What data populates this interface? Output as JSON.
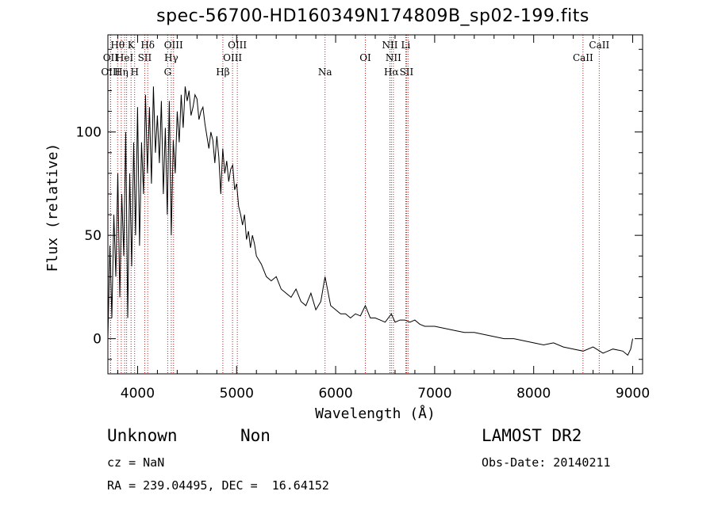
{
  "chart_data": {
    "type": "line",
    "title": "spec-56700-HD160349N174809B_sp02-199.fits",
    "xlabel": "Wavelength (Å)",
    "ylabel": "Flux (relative)",
    "xlim": [
      3700,
      9100
    ],
    "ylim": [
      -17,
      147
    ],
    "xticks": [
      "4000",
      "5000",
      "6000",
      "7000",
      "8000",
      "9000"
    ],
    "yticks": [
      "0",
      "50",
      "100"
    ],
    "lines": [
      {
        "wave": 3727,
        "label": "OII",
        "row": 2
      },
      {
        "wave": 3727,
        "label": "OIII",
        "row": 3
      },
      {
        "wave": 3798,
        "label": "Hθ",
        "row": 1
      },
      {
        "wave": 3835,
        "label": "Hη",
        "row": 3
      },
      {
        "wave": 3869,
        "label": "HeI",
        "row": 2
      },
      {
        "wave": 3889,
        "label": "",
        "row": 0
      },
      {
        "wave": 3934,
        "label": "K",
        "row": 1
      },
      {
        "wave": 3970,
        "label": "H",
        "row": 3
      },
      {
        "wave": 4072,
        "label": "SII",
        "row": 2
      },
      {
        "wave": 4102,
        "label": "Hδ",
        "row": 1
      },
      {
        "wave": 4304,
        "label": "G",
        "row": 3
      },
      {
        "wave": 4340,
        "label": "Hγ",
        "row": 2
      },
      {
        "wave": 4363,
        "label": "OIII",
        "row": 1
      },
      {
        "wave": 4861,
        "label": "Hβ",
        "row": 3
      },
      {
        "wave": 4959,
        "label": "OIII",
        "row": 2
      },
      {
        "wave": 5007,
        "label": "OIII",
        "row": 1
      },
      {
        "wave": 5893,
        "label": "Na",
        "row": 3
      },
      {
        "wave": 6300,
        "label": "OI",
        "row": 2
      },
      {
        "wave": 6548,
        "label": "NII",
        "row": 1
      },
      {
        "wave": 6563,
        "label": "Hα",
        "row": 3
      },
      {
        "wave": 6583,
        "label": "NII",
        "row": 2
      },
      {
        "wave": 6708,
        "label": "Li",
        "row": 1
      },
      {
        "wave": 6716,
        "label": "SII",
        "row": 3
      },
      {
        "wave": 6731,
        "label": "",
        "row": 0
      },
      {
        "wave": 8498,
        "label": "CaII",
        "row": 2
      },
      {
        "wave": 8662,
        "label": "CaII",
        "row": 1
      }
    ],
    "series": [
      {
        "x": [
          3700,
          3720,
          3740,
          3760,
          3780,
          3800,
          3820,
          3840,
          3860,
          3880,
          3900,
          3920,
          3940,
          3960,
          3980,
          4000,
          4020,
          4040,
          4060,
          4080,
          4100,
          4120,
          4140,
          4160,
          4180,
          4200,
          4220,
          4240,
          4260,
          4280,
          4300,
          4320,
          4340,
          4360,
          4380,
          4400,
          4420,
          4440,
          4460,
          4480,
          4500,
          4520,
          4540,
          4560,
          4580,
          4600,
          4620,
          4640,
          4660,
          4680,
          4700,
          4720,
          4740,
          4760,
          4780,
          4800,
          4820,
          4840,
          4860,
          4880,
          4900,
          4920,
          4940,
          4960,
          4980,
          5000,
          5020,
          5040,
          5060,
          5080,
          5100,
          5120,
          5140,
          5160,
          5180,
          5200,
          5250,
          5300,
          5350,
          5400,
          5450,
          5500,
          5550,
          5600,
          5650,
          5700,
          5750,
          5800,
          5850,
          5893,
          5950,
          6000,
          6050,
          6100,
          6150,
          6200,
          6250,
          6300,
          6350,
          6400,
          6450,
          6500,
          6563,
          6600,
          6650,
          6700,
          6750,
          6800,
          6850,
          6900,
          6950,
          7000,
          7100,
          7200,
          7300,
          7400,
          7500,
          7600,
          7700,
          7800,
          7900,
          8000,
          8100,
          8200,
          8300,
          8400,
          8500,
          8600,
          8700,
          8800,
          8900,
          8950,
          8980,
          9000
        ],
        "y": [
          0,
          45,
          10,
          60,
          30,
          80,
          20,
          70,
          40,
          100,
          10,
          80,
          35,
          95,
          50,
          112,
          45,
          95,
          70,
          118,
          80,
          112,
          75,
          122,
          90,
          108,
          85,
          115,
          70,
          102,
          60,
          115,
          50,
          96,
          80,
          110,
          95,
          118,
          102,
          122,
          115,
          120,
          108,
          112,
          118,
          116,
          106,
          110,
          112,
          104,
          98,
          92,
          100,
          96,
          85,
          98,
          88,
          70,
          92,
          80,
          86,
          76,
          82,
          84,
          72,
          75,
          64,
          60,
          55,
          60,
          48,
          52,
          44,
          50,
          46,
          40,
          36,
          30,
          28,
          30,
          24,
          22,
          20,
          24,
          18,
          16,
          22,
          14,
          18,
          30,
          16,
          14,
          12,
          12,
          10,
          12,
          11,
          16,
          10,
          10,
          9,
          8,
          12,
          8,
          9,
          9,
          8,
          9,
          7,
          6,
          6,
          6,
          5,
          4,
          3,
          3,
          2,
          1,
          0,
          0,
          -1,
          -2,
          -3,
          -2,
          -4,
          -5,
          -6,
          -4,
          -7,
          -5,
          -6,
          -8,
          -5,
          0
        ]
      }
    ]
  },
  "info": {
    "class": "Unknown",
    "subclass": "Non",
    "survey": "LAMOST DR2",
    "cz": "cz = NaN",
    "obs_date": "Obs-Date: 20140211",
    "coords": "RA = 239.04495, DEC =  16.64152"
  }
}
